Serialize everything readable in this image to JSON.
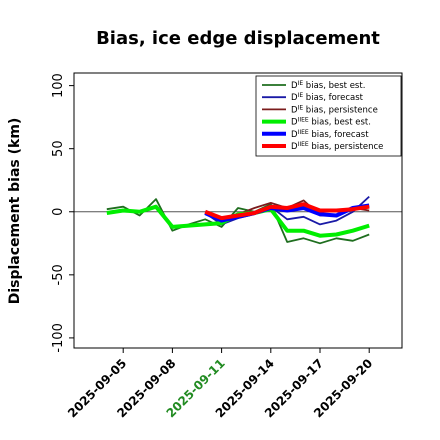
{
  "chart_data": {
    "type": "line",
    "title": "Bias, ice edge displacement",
    "ylabel": "Displacement bias (km)",
    "xlabel": "",
    "ylim": [
      -108,
      110
    ],
    "yticks": [
      -100,
      -50,
      0,
      50,
      100
    ],
    "xlim": [
      "2025-09-02",
      "2025-09-22"
    ],
    "xticks": [
      "2025-09-05",
      "2025-09-08",
      "2025-09-11",
      "2025-09-14",
      "2025-09-17",
      "2025-09-20"
    ],
    "highlight_tick": "2025-09-11",
    "highlight_color": "#228B22",
    "zero_line": true,
    "grid": false,
    "legend_position": "top-right",
    "series": [
      {
        "name": "D^IE bias, best est.",
        "base": "D",
        "sup": "IE",
        "rest": " bias, best est.",
        "color": "#1f6e1f",
        "width": 1.8,
        "x": [
          "2025-09-04",
          "2025-09-05",
          "2025-09-06",
          "2025-09-07",
          "2025-09-08",
          "2025-09-09",
          "2025-09-10",
          "2025-09-11",
          "2025-09-12",
          "2025-09-13",
          "2025-09-14",
          "2025-09-15",
          "2025-09-16",
          "2025-09-17",
          "2025-09-18",
          "2025-09-19",
          "2025-09-20"
        ],
        "y": [
          2,
          4,
          -3,
          10,
          -15,
          -10,
          -6,
          -12,
          3,
          0,
          6,
          -24,
          -21,
          -25,
          -21,
          -23,
          -18
        ]
      },
      {
        "name": "D^IE bias, forecast",
        "base": "D",
        "sup": "IE",
        "rest": " bias, forecast",
        "color": "#1a1aa6",
        "width": 1.8,
        "x": [
          "2025-09-10",
          "2025-09-11",
          "2025-09-12",
          "2025-09-13",
          "2025-09-14",
          "2025-09-15",
          "2025-09-16",
          "2025-09-17",
          "2025-09-18",
          "2025-09-19",
          "2025-09-20"
        ],
        "y": [
          -1,
          -10,
          -5,
          -2,
          4,
          -6,
          -4,
          -10,
          -7,
          0,
          12
        ]
      },
      {
        "name": "D^IE bias, persistence",
        "base": "D",
        "sup": "IE",
        "rest": " bias, persistence",
        "color": "#7b1c1c",
        "width": 1.8,
        "x": [
          "2025-09-10",
          "2025-09-11",
          "2025-09-12",
          "2025-09-13",
          "2025-09-14",
          "2025-09-15",
          "2025-09-16",
          "2025-09-17",
          "2025-09-18",
          "2025-09-19",
          "2025-09-20"
        ],
        "y": [
          0,
          -6,
          -2,
          3,
          7,
          3,
          9,
          -3,
          -3,
          3,
          1
        ]
      },
      {
        "name": "D^IIEE bias, best est.",
        "base": "D",
        "sup": "IIEE",
        "rest": " bias, best est.",
        "color": "#00ee00",
        "width": 4,
        "x": [
          "2025-09-04",
          "2025-09-05",
          "2025-09-06",
          "2025-09-07",
          "2025-09-08",
          "2025-09-09",
          "2025-09-10",
          "2025-09-11",
          "2025-09-12",
          "2025-09-13",
          "2025-09-14",
          "2025-09-15",
          "2025-09-16",
          "2025-09-17",
          "2025-09-18",
          "2025-09-19",
          "2025-09-20"
        ],
        "y": [
          -1,
          1,
          0,
          4,
          -12,
          -11,
          -10,
          -9,
          -2,
          -1,
          2,
          -15,
          -15,
          -19,
          -18,
          -15,
          -11
        ]
      },
      {
        "name": "D^IIEE bias, forecast",
        "base": "D",
        "sup": "IIEE",
        "rest": " bias, forecast",
        "color": "#0000ff",
        "width": 4,
        "x": [
          "2025-09-10",
          "2025-09-11",
          "2025-09-12",
          "2025-09-13",
          "2025-09-14",
          "2025-09-15",
          "2025-09-16",
          "2025-09-17",
          "2025-09-18",
          "2025-09-19",
          "2025-09-20"
        ],
        "y": [
          -1,
          -7,
          -4,
          -1,
          3,
          1,
          3,
          -2,
          -3,
          3,
          5
        ]
      },
      {
        "name": "D^IIEE bias, persistence",
        "base": "D",
        "sup": "IIEE",
        "rest": " bias, persistence",
        "color": "#ff0000",
        "width": 4,
        "x": [
          "2025-09-10",
          "2025-09-11",
          "2025-09-12",
          "2025-09-13",
          "2025-09-14",
          "2025-09-15",
          "2025-09-16",
          "2025-09-17",
          "2025-09-18",
          "2025-09-19",
          "2025-09-20"
        ],
        "y": [
          0,
          -5,
          -3,
          -1,
          4,
          3,
          6,
          1,
          1,
          2,
          4
        ]
      }
    ]
  }
}
